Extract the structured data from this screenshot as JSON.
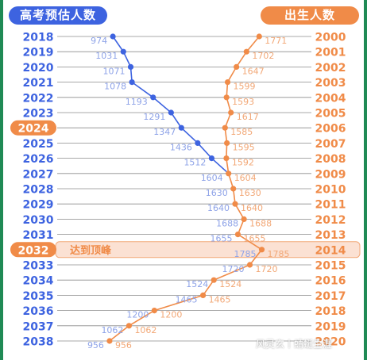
{
  "header": {
    "left_title": "高考预估人数",
    "right_title": "出生人数"
  },
  "peak_label": "达到顶峰",
  "watermark": "风灵玄丨蜻蜓生涯",
  "colors": {
    "exam_series": "#3d63e0",
    "exam_label": "#8ea3e8",
    "birth_series": "#f08b48",
    "birth_label": "#f2a877",
    "highlight_fill": "#fbe1d3",
    "highlight_border": "#f2a877",
    "row_line": "#8c8c8c"
  },
  "chart_data": {
    "type": "line",
    "left_axis_years": [
      "2018",
      "2019",
      "2020",
      "2021",
      "2022",
      "2023",
      "2024",
      "2025",
      "2026",
      "2027",
      "2028",
      "2029",
      "2030",
      "2031",
      "2032",
      "2033",
      "2034",
      "2035",
      "2036",
      "2037",
      "2038"
    ],
    "right_axis_years": [
      "2000",
      "2001",
      "2002",
      "2003",
      "2004",
      "2005",
      "2006",
      "2007",
      "2008",
      "2009",
      "2010",
      "2011",
      "2012",
      "2013",
      "2014",
      "2015",
      "2016",
      "2017",
      "2018",
      "2019",
      "2020"
    ],
    "highlight_rows": [
      6,
      14
    ],
    "series": [
      {
        "key": "exam",
        "values": [
          974,
          1031,
          1071,
          1078,
          1193,
          1291,
          1347,
          1436,
          1512,
          1604,
          1630,
          1640,
          1688,
          1655,
          1785,
          1720,
          1524,
          1465,
          1200,
          1062,
          956
        ],
        "label_side": "left"
      },
      {
        "key": "birth",
        "values": [
          1771,
          1702,
          1647,
          1599,
          1593,
          1617,
          1585,
          1595,
          1592,
          1604,
          1630,
          1640,
          1688,
          1655,
          1785,
          1720,
          1524,
          1465,
          1200,
          1062,
          956
        ],
        "label_side": "right"
      }
    ],
    "value_range": [
      900,
      1800
    ]
  }
}
